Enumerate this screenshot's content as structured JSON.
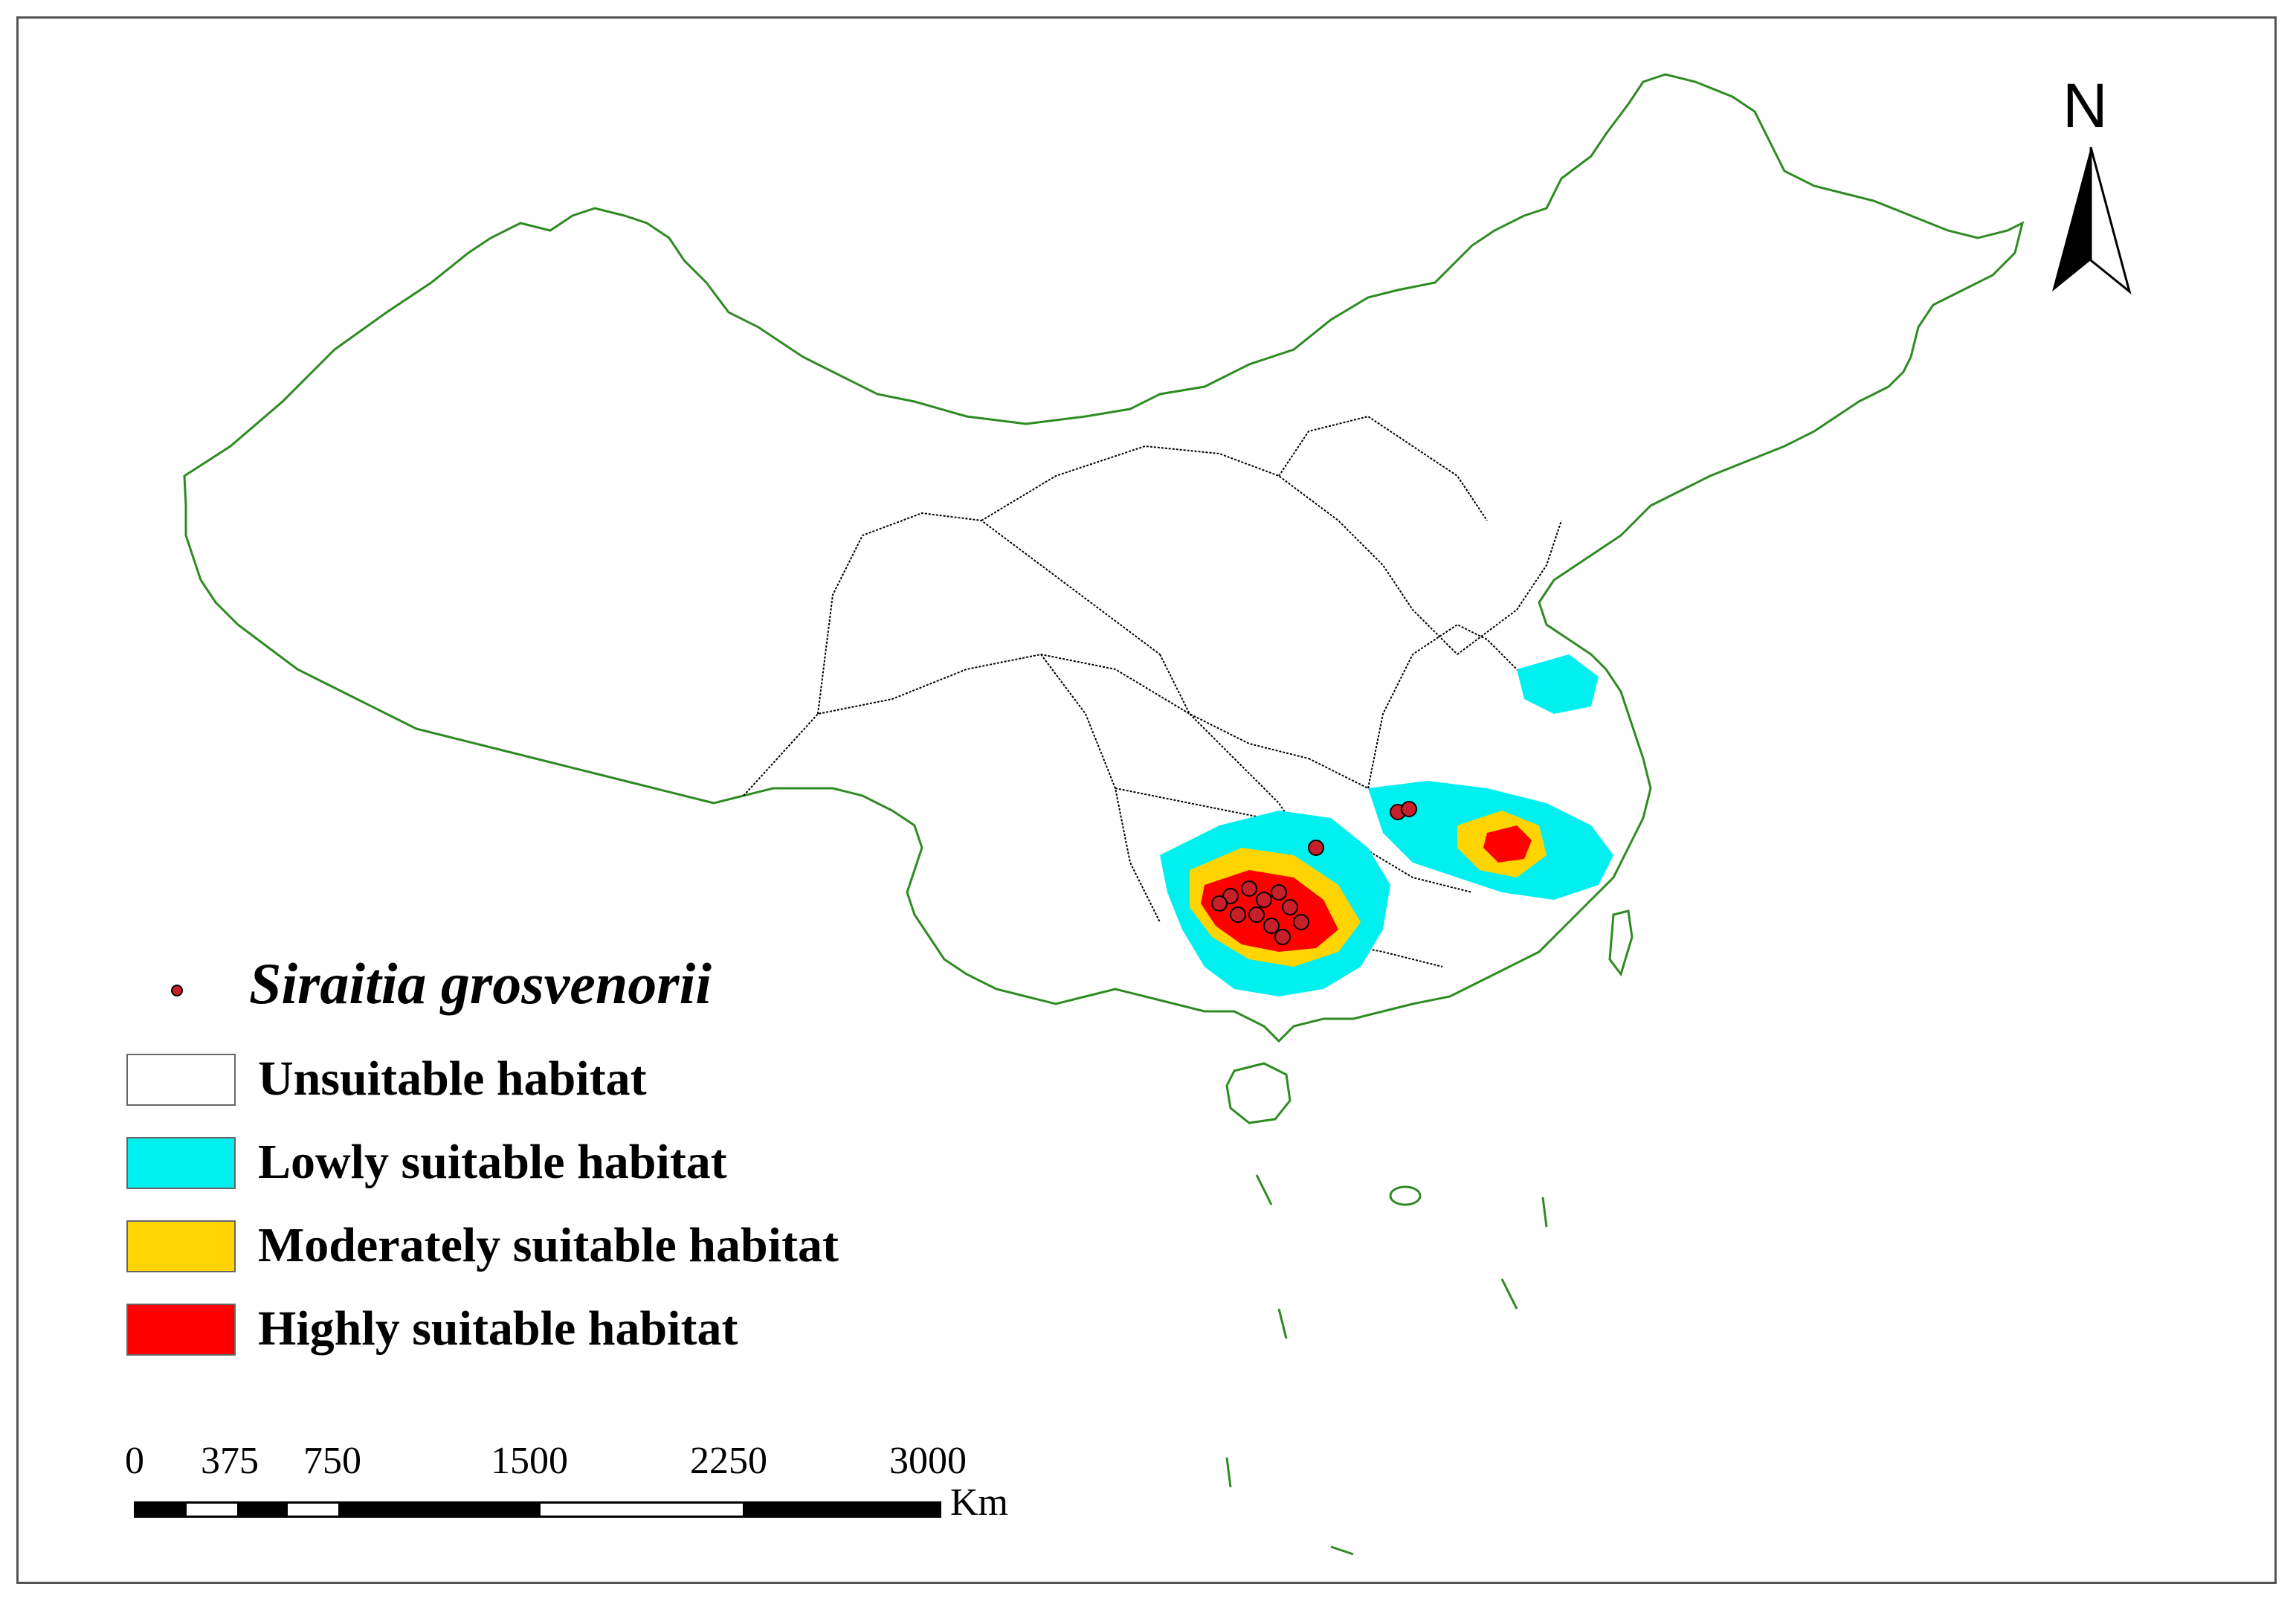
{
  "legend": {
    "species": "Siraitia grosvenorii",
    "species_color": "#c8202a",
    "items": [
      {
        "label": "Unsuitable habitat",
        "color": "#ffffff"
      },
      {
        "label": "Lowly suitable habitat",
        "color": "#00f0f0"
      },
      {
        "label": "Moderately suitable habitat",
        "color": "#ffd400"
      },
      {
        "label": "Highly suitable habitat",
        "color": "#ff0000"
      }
    ]
  },
  "north_arrow": {
    "label": "N"
  },
  "scale_bar": {
    "ticks": [
      "0",
      "375",
      "750",
      "1500",
      "2250",
      "3000"
    ],
    "unit": "Km"
  },
  "colors": {
    "border": "#2e8b22",
    "province_lines": "#000000"
  }
}
